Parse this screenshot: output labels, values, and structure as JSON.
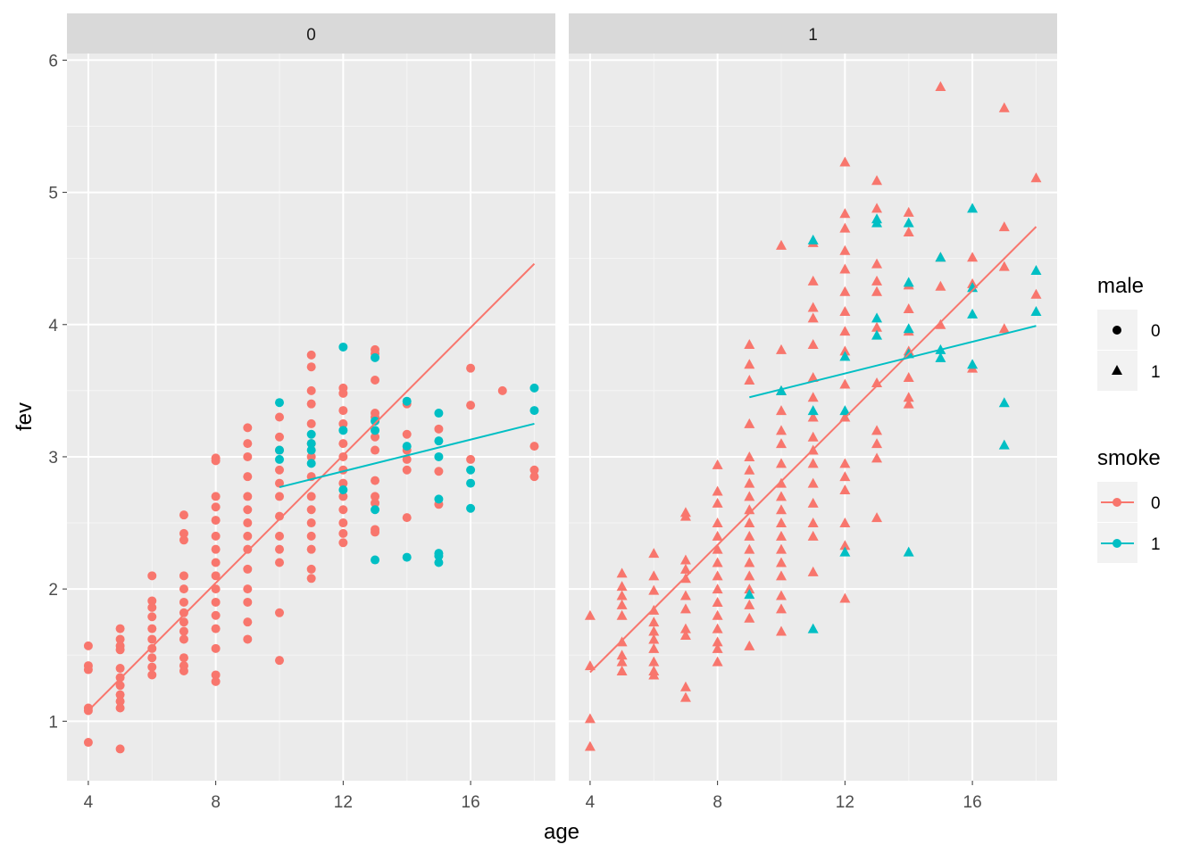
{
  "chart_data": {
    "type": "scatter",
    "facet_variable": "male",
    "facets": [
      "0",
      "1"
    ],
    "xlabel": "age",
    "ylabel": "fev",
    "xlim": [
      3.33,
      18.66
    ],
    "ylim": [
      0.55,
      6.05
    ],
    "x_ticks": [
      4,
      8,
      12,
      16
    ],
    "y_ticks": [
      1,
      2,
      3,
      4,
      5,
      6
    ],
    "grid": true,
    "colors": {
      "smoke_0": "#F8766D",
      "smoke_1": "#00BFC4"
    },
    "legend": {
      "placement": "right",
      "shape": {
        "title": "male",
        "entries": [
          {
            "label": "0",
            "shape": "circle"
          },
          {
            "label": "1",
            "shape": "triangle"
          }
        ]
      },
      "color": {
        "title": "smoke",
        "entries": [
          {
            "label": "0"
          },
          {
            "label": "1"
          }
        ]
      }
    },
    "fit_lines": [
      {
        "facet": "0",
        "smoke": 0,
        "x": [
          4,
          18
        ],
        "y": [
          1.08,
          4.46
        ]
      },
      {
        "facet": "0",
        "smoke": 1,
        "x": [
          10,
          18
        ],
        "y": [
          2.77,
          3.25
        ]
      },
      {
        "facet": "1",
        "smoke": 0,
        "x": [
          4,
          18
        ],
        "y": [
          1.37,
          4.74
        ]
      },
      {
        "facet": "1",
        "smoke": 1,
        "x": [
          9,
          18
        ],
        "y": [
          3.45,
          3.99
        ]
      }
    ],
    "points_format": [
      "age",
      "fev",
      "smoke"
    ],
    "points": {
      "0": {
        "4": [
          [
            1.57,
            1.42,
            1.39,
            1.1,
            1.08,
            0.84
          ],
          []
        ],
        "5": [
          [
            1.7,
            1.62,
            1.57,
            1.54,
            1.4,
            1.33,
            1.27,
            1.2,
            1.15,
            1.1,
            0.79
          ],
          []
        ],
        "6": [
          [
            2.1,
            1.91,
            1.86,
            1.79,
            1.7,
            1.62,
            1.55,
            1.48,
            1.41,
            1.35
          ],
          []
        ],
        "7": [
          [
            2.56,
            2.42,
            2.37,
            2.1,
            2.0,
            1.9,
            1.82,
            1.75,
            1.68,
            1.62,
            1.48,
            1.42,
            1.38
          ],
          []
        ],
        "8": [
          [
            2.99,
            2.97,
            2.7,
            2.62,
            2.52,
            2.4,
            2.3,
            2.2,
            2.1,
            2.0,
            1.9,
            1.8,
            1.7,
            1.55,
            1.35,
            1.3
          ],
          []
        ],
        "9": [
          [
            3.22,
            3.1,
            3.0,
            2.85,
            2.7,
            2.6,
            2.5,
            2.4,
            2.3,
            2.15,
            2.0,
            1.9,
            1.75,
            1.62
          ],
          []
        ],
        "10": [
          [
            3.3,
            3.15,
            3.05,
            2.9,
            2.8,
            2.7,
            2.55,
            2.4,
            2.3,
            2.2,
            1.82,
            1.46
          ],
          [
            3.41,
            3.05,
            2.98
          ]
        ],
        "11": [
          [
            3.77,
            3.68,
            3.5,
            3.4,
            3.25,
            3.1,
            3.0,
            2.85,
            2.7,
            2.6,
            2.5,
            2.4,
            2.3,
            2.15,
            2.08
          ],
          [
            3.17,
            3.1,
            3.05,
            2.95
          ]
        ],
        "12": [
          [
            3.52,
            3.48,
            3.35,
            3.25,
            3.1,
            3.0,
            2.9,
            2.8,
            2.7,
            2.6,
            2.5,
            2.42,
            2.35
          ],
          [
            3.83,
            3.2,
            2.75
          ]
        ],
        "13": [
          [
            3.81,
            3.78,
            3.58,
            3.33,
            3.3,
            3.15,
            3.05,
            2.82,
            2.7,
            2.65,
            2.45,
            2.43
          ],
          [
            3.75,
            3.27,
            3.2,
            2.6,
            2.22
          ]
        ],
        "14": [
          [
            3.4,
            3.17,
            3.05,
            2.98,
            2.9,
            2.54
          ],
          [
            3.42,
            3.08,
            2.24
          ]
        ],
        "15": [
          [
            3.21,
            2.89,
            2.64
          ],
          [
            3.33,
            3.12,
            3.0,
            2.68,
            2.27,
            2.25,
            2.2
          ]
        ],
        "16": [
          [
            3.67,
            3.39,
            2.98
          ],
          [
            2.9,
            2.8,
            2.61
          ]
        ],
        "17": [
          [
            3.5
          ],
          []
        ],
        "18": [
          [
            3.08,
            2.9,
            2.85
          ],
          [
            3.52,
            3.35
          ]
        ]
      },
      "1": {
        "4": [
          [
            1.8,
            1.42,
            1.02,
            0.81
          ],
          []
        ],
        "5": [
          [
            2.12,
            2.02,
            1.95,
            1.88,
            1.8,
            1.6,
            1.5,
            1.45,
            1.38
          ],
          []
        ],
        "6": [
          [
            2.27,
            2.1,
            1.99,
            1.84,
            1.75,
            1.68,
            1.62,
            1.55,
            1.45,
            1.38,
            1.35
          ],
          []
        ],
        "7": [
          [
            2.58,
            2.55,
            2.22,
            2.15,
            2.08,
            1.95,
            1.85,
            1.7,
            1.65,
            1.26,
            1.18
          ],
          []
        ],
        "8": [
          [
            2.94,
            2.74,
            2.65,
            2.5,
            2.4,
            2.3,
            2.2,
            2.1,
            2.0,
            1.9,
            1.8,
            1.7,
            1.6,
            1.55,
            1.45
          ],
          []
        ],
        "9": [
          [
            3.85,
            3.7,
            3.58,
            3.25,
            3.0,
            2.9,
            2.8,
            2.7,
            2.6,
            2.5,
            2.4,
            2.3,
            2.2,
            2.1,
            2.0,
            1.88,
            1.78,
            1.57
          ],
          [
            1.96
          ]
        ],
        "10": [
          [
            4.6,
            3.81,
            3.5,
            3.35,
            3.2,
            3.1,
            2.95,
            2.8,
            2.7,
            2.6,
            2.5,
            2.4,
            2.3,
            2.2,
            2.1,
            1.95,
            1.85,
            1.68
          ],
          [
            3.5
          ]
        ],
        "11": [
          [
            4.62,
            4.33,
            4.13,
            4.05,
            3.85,
            3.6,
            3.45,
            3.3,
            3.15,
            3.05,
            2.95,
            2.8,
            2.65,
            2.5,
            2.4,
            2.13
          ],
          [
            4.64,
            3.35,
            1.7
          ]
        ],
        "12": [
          [
            5.23,
            4.84,
            4.73,
            4.56,
            4.42,
            4.25,
            4.1,
            3.95,
            3.8,
            3.55,
            3.3,
            2.95,
            2.85,
            2.75,
            2.5,
            2.33,
            1.93
          ],
          [
            3.76,
            3.35,
            2.28
          ]
        ],
        "13": [
          [
            5.09,
            4.88,
            4.46,
            4.33,
            4.25,
            3.98,
            3.56,
            3.2,
            3.1,
            2.99,
            2.54
          ],
          [
            4.8,
            4.77,
            4.05,
            3.92
          ]
        ],
        "14": [
          [
            4.85,
            4.7,
            4.3,
            4.12,
            3.95,
            3.8,
            3.6,
            3.45,
            3.4
          ],
          [
            4.77,
            4.32,
            3.97,
            3.78,
            2.28
          ]
        ],
        "15": [
          [
            5.8,
            4.51,
            4.29,
            4.0
          ],
          [
            4.51,
            3.81,
            3.75
          ]
        ],
        "16": [
          [
            4.51,
            4.31,
            3.67
          ],
          [
            4.88,
            4.28,
            4.08,
            3.7
          ]
        ],
        "17": [
          [
            5.64,
            4.74,
            4.44,
            3.97
          ],
          [
            3.41,
            3.09
          ]
        ],
        "18": [
          [
            5.11,
            4.23
          ],
          [
            4.41,
            4.1
          ]
        ]
      }
    }
  }
}
